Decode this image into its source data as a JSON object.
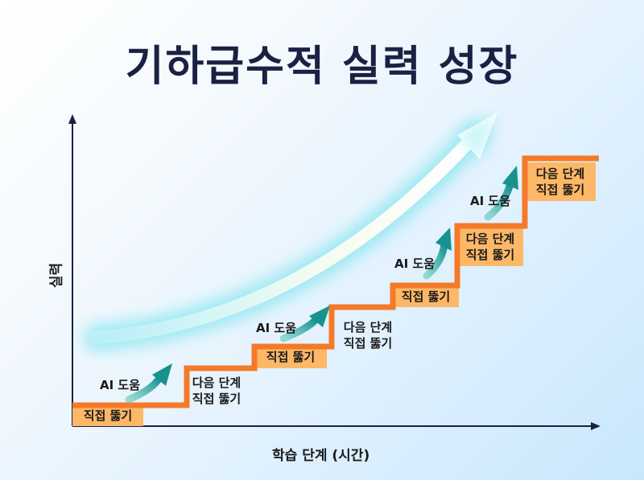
{
  "title": "기하급수적 실력 성장",
  "axes": {
    "x_label": "학습 단계 (시간)",
    "y_label": "실력"
  },
  "labels": {
    "direct": "직접 뚫기",
    "next_line1": "다음 단계",
    "next_line2": "직접 뚫기",
    "ai_help": "AI 도움"
  },
  "colors": {
    "step_line": "#f47a2a",
    "box_fill": "#fdb867",
    "ai_arrow": "#1fa39d",
    "axis": "#1b2143",
    "title": "#1b2143"
  },
  "icons": [
    "growth-curve-arrow",
    "ai-boost-arrow"
  ]
}
